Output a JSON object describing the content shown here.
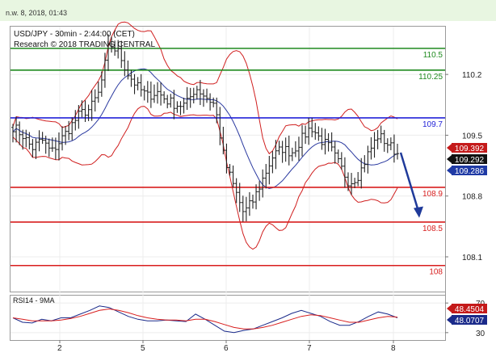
{
  "timestamp": "n.w. 8, 2018, 01:43",
  "chart_data": [
    {
      "type": "candlestick",
      "title": "USD/JPY - 30min - 2:44:00 (CET)",
      "subtitle": "Research © 2018 TRADING CENTRAL",
      "x_tick_labels": [
        "2",
        "5",
        "6",
        "7",
        "8"
      ],
      "y_tick_labels": [
        "110.2",
        "109.5",
        "108.8",
        "108.1"
      ],
      "ylim": [
        107.7,
        110.75
      ],
      "levels": [
        {
          "label": "110.5",
          "value": 110.5,
          "color": "#1f8a1f"
        },
        {
          "label": "110.25",
          "value": 110.25,
          "color": "#1f8a1f"
        },
        {
          "label": "109.7",
          "value": 109.7,
          "color": "#2323d8"
        },
        {
          "label": "108.9",
          "value": 108.9,
          "color": "#d81e1e"
        },
        {
          "label": "108.5",
          "value": 108.5,
          "color": "#d81e1e"
        },
        {
          "label": "108",
          "value": 108.0,
          "color": "#d81e1e"
        }
      ],
      "price_badges": [
        {
          "label": "109.392",
          "color": "#c41a1a"
        },
        {
          "label": "109.292",
          "color": "#111111"
        },
        {
          "label": "109.286",
          "color": "#1f3aa5"
        }
      ],
      "close_path": [
        109.6,
        109.5,
        109.35,
        109.45,
        109.3,
        109.45,
        109.6,
        109.75,
        109.8,
        110.0,
        110.55,
        110.45,
        110.2,
        110.05,
        109.95,
        110.0,
        109.9,
        109.85,
        109.85,
        110.05,
        109.95,
        109.85,
        109.2,
        108.9,
        108.6,
        108.75,
        109.0,
        109.25,
        109.35,
        109.3,
        109.45,
        109.6,
        109.45,
        109.35,
        109.15,
        108.95,
        109.05,
        109.3,
        109.5,
        109.4,
        109.29
      ],
      "projection_arrow": {
        "from": 109.3,
        "to": 108.55
      }
    },
    {
      "type": "line",
      "title": "RSI14 - 9MA",
      "series": [
        {
          "values": [
            50,
            44,
            43,
            48,
            46,
            50,
            50,
            55,
            60,
            66,
            64,
            58,
            52,
            48,
            46,
            46,
            47,
            46,
            45,
            55,
            48,
            40,
            32,
            30,
            33,
            35,
            40,
            45,
            50,
            56,
            60,
            56,
            52,
            45,
            40,
            40,
            45,
            52,
            58,
            55,
            50
          ],
          "color": "#1a2a8a"
        },
        {
          "values": [
            50,
            48,
            46,
            46,
            46,
            47,
            49,
            52,
            56,
            60,
            62,
            60,
            57,
            53,
            50,
            48,
            47,
            47,
            46,
            48,
            48,
            45,
            41,
            37,
            35,
            35,
            37,
            40,
            44,
            48,
            52,
            54,
            53,
            50,
            47,
            44,
            44,
            47,
            50,
            52,
            51
          ],
          "color": "#d81e1e"
        }
      ],
      "value_badges": [
        {
          "label": "48.4504",
          "color": "#c41a1a"
        },
        {
          "label": "48.0707",
          "color": "#1a2a8a"
        }
      ],
      "y_tick_labels": [
        "70",
        "30"
      ],
      "ylim": [
        20,
        80
      ]
    }
  ]
}
